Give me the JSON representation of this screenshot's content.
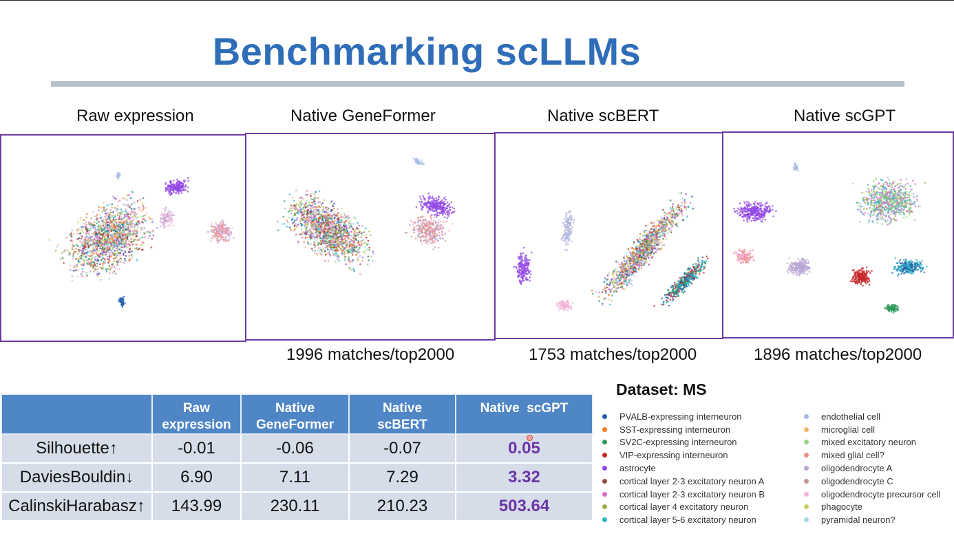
{
  "title": "Benchmarking scLLMs",
  "panels": [
    {
      "label": "Raw expression",
      "match": ""
    },
    {
      "label": "Native GeneFormer",
      "match": "1996 matches/top2000"
    },
    {
      "label": "Native scBERT",
      "match": "1753 matches/top2000"
    },
    {
      "label": "Native scGPT",
      "match": "1896 matches/top2000"
    }
  ],
  "table": {
    "headers": [
      [
        "",
        ""
      ],
      [
        "Raw",
        "expression"
      ],
      [
        "Native",
        "GeneFormer"
      ],
      [
        "Native",
        "scBERT"
      ],
      [
        "Native  scGPT",
        ""
      ]
    ],
    "rows": [
      {
        "metric": "Silhouette↑",
        "values": [
          "-0.01",
          "-0.06",
          "-0.07",
          "0.05"
        ]
      },
      {
        "metric": "DaviesBouldin↓",
        "values": [
          "6.90",
          "7.11",
          "7.29",
          "3.32"
        ]
      },
      {
        "metric": "CalinskiHarabasz↑",
        "values": [
          "143.99",
          "230.11",
          "210.23",
          "503.64"
        ]
      }
    ]
  },
  "dataset_label": "Dataset: MS",
  "legend": {
    "col1": [
      {
        "label": "PVALB-expressing interneuron",
        "color": "#1f5fa8"
      },
      {
        "label": "SST-expressing interneuron",
        "color": "#f07f1c"
      },
      {
        "label": "SV2C-expressing interneuron",
        "color": "#2e9a5a"
      },
      {
        "label": "VIP-expressing interneuron",
        "color": "#c62828"
      },
      {
        "label": "astrocyte",
        "color": "#9348e6"
      },
      {
        "label": "cortical layer 2-3 excitatory neuron A",
        "color": "#8c4d3f"
      },
      {
        "label": "cortical layer 2-3 excitatory neuron B",
        "color": "#d46fc4"
      },
      {
        "label": "cortical layer 4 excitatory neuron",
        "color": "#9bb04a"
      },
      {
        "label": "cortical layer 5-6 excitatory neuron",
        "color": "#2bb7c7"
      }
    ],
    "col2": [
      {
        "label": "endothelial cell",
        "color": "#a9bde3"
      },
      {
        "label": "microglial cell",
        "color": "#f5b56e"
      },
      {
        "label": "mixed excitatory neuron",
        "color": "#96d68a"
      },
      {
        "label": "mixed glial cell?",
        "color": "#ef8e86"
      },
      {
        "label": "oligodendrocyte A",
        "color": "#b7a6d3"
      },
      {
        "label": "oligodendrocyte C",
        "color": "#c2988e"
      },
      {
        "label": "oligodendrocyte precursor cell",
        "color": "#f2b4d8"
      },
      {
        "label": "phagocyte",
        "color": "#c9cd6a"
      },
      {
        "label": "pyramidal neuron?",
        "color": "#9fd8e2"
      }
    ]
  }
}
